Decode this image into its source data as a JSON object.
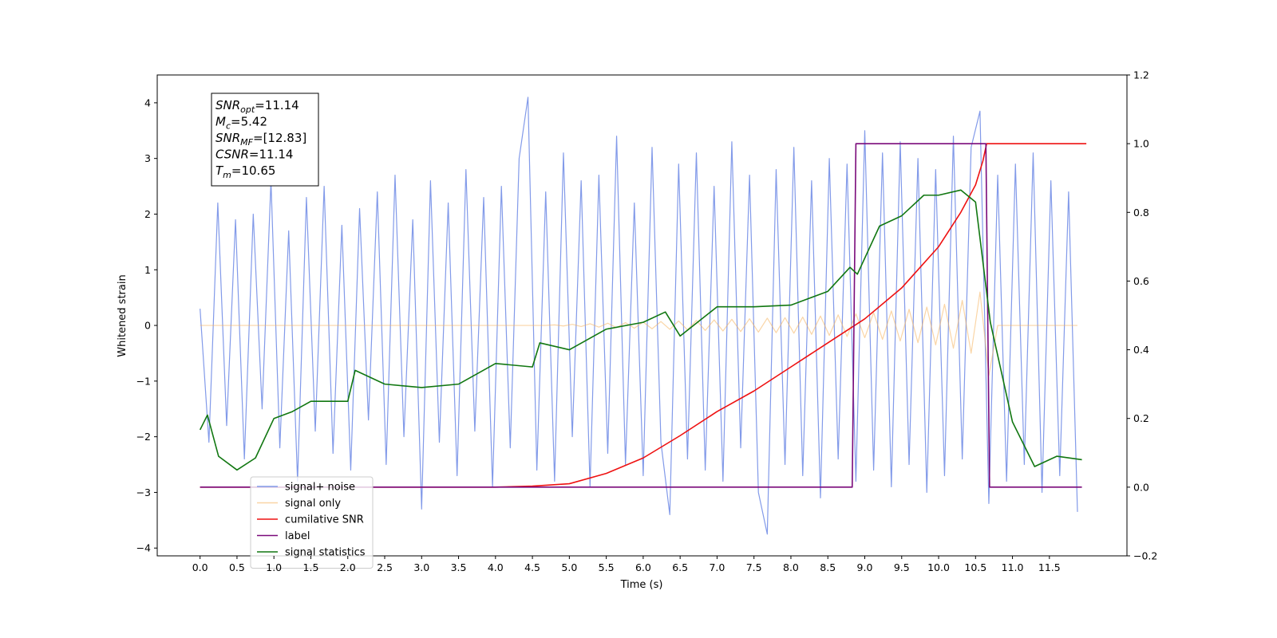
{
  "chart_data": {
    "type": "line",
    "xlabel": "Time (s)",
    "ylabel": "Whitened strain",
    "xlim": [
      -0.58,
      12.55
    ],
    "ylim": [
      -4.14,
      4.5
    ],
    "y2lim": [
      -0.2,
      1.2
    ],
    "xticks": [
      {
        "value": 0,
        "label": "0.0"
      },
      0.5,
      {
        "value": 1,
        "label": "1.0"
      },
      1.5,
      {
        "value": 2,
        "label": "2.0"
      },
      2.5,
      {
        "value": 3,
        "label": "3.0"
      },
      3.5,
      {
        "value": 4,
        "label": "4.0"
      },
      4.5,
      {
        "value": 5,
        "label": "5.0"
      },
      5.5,
      {
        "value": 6,
        "label": "6.0"
      },
      6.5,
      {
        "value": 7,
        "label": "7.0"
      },
      7.5,
      {
        "value": 8,
        "label": "8.0"
      },
      8.5,
      {
        "value": 9,
        "label": "9.0"
      },
      9.5,
      {
        "value": 10,
        "label": "10.0"
      },
      10.5,
      {
        "value": 11,
        "label": "11.0"
      },
      11.5
    ],
    "yticks": [
      {
        "value": -4,
        "label": "−4"
      },
      {
        "value": -3,
        "label": "−3"
      },
      {
        "value": -2,
        "label": "−2"
      },
      {
        "value": -1,
        "label": "−1"
      },
      0,
      1,
      2,
      3,
      4
    ],
    "y2ticks": [
      {
        "value": -0.2,
        "label": "−0.2"
      },
      {
        "value": 0,
        "label": "0.0"
      },
      0.2,
      0.4,
      0.6,
      0.8,
      {
        "value": 1,
        "label": "1.0"
      },
      1.2
    ],
    "legend": "lower left",
    "annotation": [
      {
        "base": "SNR",
        "sub": "opt",
        "text": "=11.14"
      },
      {
        "base": "M",
        "sub": "c",
        "text": "=5.42"
      },
      {
        "base": "SNR",
        "sub": "MF",
        "text": "=[12.83]"
      },
      {
        "base": "CSNR",
        "sub": null,
        "text": "=11.14"
      },
      {
        "base": "T",
        "sub": "m",
        "text": "=10.65"
      }
    ],
    "x": [
      0,
      0.12,
      0.24,
      0.36,
      0.48,
      0.6,
      0.72,
      0.84,
      0.96,
      1.08,
      1.2,
      1.32,
      1.44,
      1.56,
      1.68,
      1.8,
      1.92,
      2.04,
      2.16,
      2.28,
      2.4,
      2.52,
      2.64,
      2.76,
      2.88,
      3,
      3.12,
      3.24,
      3.36,
      3.48,
      3.6,
      3.72,
      3.84,
      3.96,
      4.08,
      4.2,
      4.32,
      4.44,
      4.56,
      4.68,
      4.8,
      4.92,
      5.04,
      5.16,
      5.28,
      5.4,
      5.52,
      5.64,
      5.76,
      5.88,
      6,
      6.12,
      6.24,
      6.36,
      6.48,
      6.6,
      6.72,
      6.84,
      6.96,
      7.08,
      7.2,
      7.32,
      7.44,
      7.56,
      7.68,
      7.8,
      7.92,
      8.04,
      8.16,
      8.28,
      8.4,
      8.52,
      8.64,
      8.76,
      8.88,
      9,
      9.12,
      9.24,
      9.36,
      9.48,
      9.6,
      9.72,
      9.84,
      9.96,
      10.08,
      10.2,
      10.32,
      10.44,
      10.56,
      10.68,
      10.8,
      10.92,
      11.04,
      11.16,
      11.28,
      11.4,
      11.52,
      11.64,
      11.76,
      11.88
    ],
    "series": [
      {
        "name": "signal+ noise",
        "color": "#7b95e8",
        "values": [
          0.3,
          -2.1,
          2.2,
          -1.8,
          1.9,
          -2.4,
          2.0,
          -1.5,
          2.6,
          -2.2,
          1.7,
          -2.8,
          2.3,
          -1.9,
          2.5,
          -2.3,
          1.8,
          -2.6,
          2.1,
          -1.7,
          2.4,
          -2.5,
          2.7,
          -2.0,
          1.9,
          -3.3,
          2.6,
          -2.1,
          2.2,
          -2.7,
          2.8,
          -1.9,
          2.3,
          -2.9,
          2.5,
          -2.2,
          3.0,
          4.1,
          -2.6,
          2.4,
          -2.8,
          3.1,
          -2.0,
          2.6,
          -2.9,
          2.7,
          -2.3,
          3.4,
          -2.5,
          2.2,
          -2.7,
          3.2,
          -2.1,
          -3.4,
          2.9,
          -2.4,
          3.1,
          -2.6,
          2.5,
          -2.8,
          3.3,
          -2.2,
          2.7,
          -3.0,
          -3.75,
          2.8,
          -2.5,
          3.2,
          -2.7,
          2.6,
          -3.1,
          3.0,
          -2.4,
          2.9,
          -2.8,
          3.5,
          -2.6,
          3.1,
          -2.9,
          3.3,
          -2.5,
          3.0,
          -3.0,
          2.8,
          -2.7,
          3.4,
          -2.4,
          3.2,
          3.85,
          -3.2,
          2.7,
          -2.8,
          2.9,
          -2.5,
          3.1,
          -3.0,
          2.6,
          -2.7,
          2.4,
          -3.35
        ]
      },
      {
        "name": "signal only",
        "color": "#f5b35c",
        "values": [
          0,
          0,
          0,
          0,
          0,
          0,
          0,
          0,
          0,
          0,
          0,
          0,
          0,
          0,
          0,
          0,
          0,
          0,
          0,
          0,
          0,
          0,
          0,
          0,
          0,
          0,
          0,
          0,
          0,
          0,
          0,
          0,
          0,
          0,
          0,
          0,
          0,
          0,
          0,
          0,
          0.01,
          -0.01,
          0.02,
          -0.02,
          0.03,
          -0.03,
          0.04,
          -0.04,
          0.05,
          -0.05,
          0.06,
          -0.06,
          0.07,
          -0.07,
          0.08,
          -0.08,
          0.09,
          -0.09,
          0.1,
          -0.1,
          0.11,
          -0.11,
          0.12,
          -0.12,
          0.13,
          -0.13,
          0.14,
          -0.14,
          0.15,
          -0.16,
          0.17,
          -0.18,
          0.19,
          -0.2,
          0.21,
          -0.22,
          0.23,
          -0.25,
          0.26,
          -0.28,
          0.29,
          -0.31,
          0.33,
          -0.35,
          0.38,
          -0.41,
          0.45,
          -0.5,
          0.6,
          -0.9,
          0,
          0,
          0,
          0,
          0,
          0,
          0,
          0,
          0,
          0
        ]
      },
      {
        "name": "cumilative SNR",
        "color": "#ee1111",
        "axis": "y2",
        "x": [
          0,
          4,
          4.5,
          5,
          5.5,
          6,
          6.5,
          7,
          7.5,
          8,
          8.5,
          9,
          9.5,
          10,
          10.3,
          10.5,
          10.6,
          10.65,
          12
        ],
        "values": [
          0,
          0,
          0.003,
          0.01,
          0.04,
          0.085,
          0.15,
          0.22,
          0.28,
          0.35,
          0.42,
          0.49,
          0.58,
          0.7,
          0.8,
          0.88,
          0.95,
          1,
          1
        ]
      },
      {
        "name": "label",
        "color": "#7a0a7a",
        "axis": "y2",
        "x": [
          0,
          8.83,
          8.88,
          10.64,
          10.69,
          11.94
        ],
        "values": [
          0,
          0,
          1,
          1,
          0,
          0
        ]
      },
      {
        "name": "signal statistics",
        "color": "#117711",
        "axis": "y2",
        "x": [
          0,
          0.1,
          0.25,
          0.5,
          0.75,
          1,
          1.25,
          1.5,
          2,
          2.1,
          2.5,
          3,
          3.5,
          4,
          4.5,
          4.6,
          5,
          5.5,
          6,
          6.3,
          6.5,
          7,
          7.5,
          8,
          8.5,
          8.8,
          8.9,
          9.2,
          9.5,
          9.8,
          10,
          10.3,
          10.5,
          10.7,
          11,
          11.3,
          11.6,
          11.94
        ],
        "values": [
          0.167,
          0.21,
          0.09,
          0.05,
          0.085,
          0.2,
          0.22,
          0.25,
          0.25,
          0.34,
          0.3,
          0.29,
          0.3,
          0.36,
          0.35,
          0.42,
          0.4,
          0.46,
          0.48,
          0.51,
          0.44,
          0.525,
          0.525,
          0.53,
          0.57,
          0.64,
          0.62,
          0.76,
          0.79,
          0.85,
          0.85,
          0.865,
          0.83,
          0.48,
          0.19,
          0.06,
          0.09,
          0.08
        ]
      }
    ]
  }
}
